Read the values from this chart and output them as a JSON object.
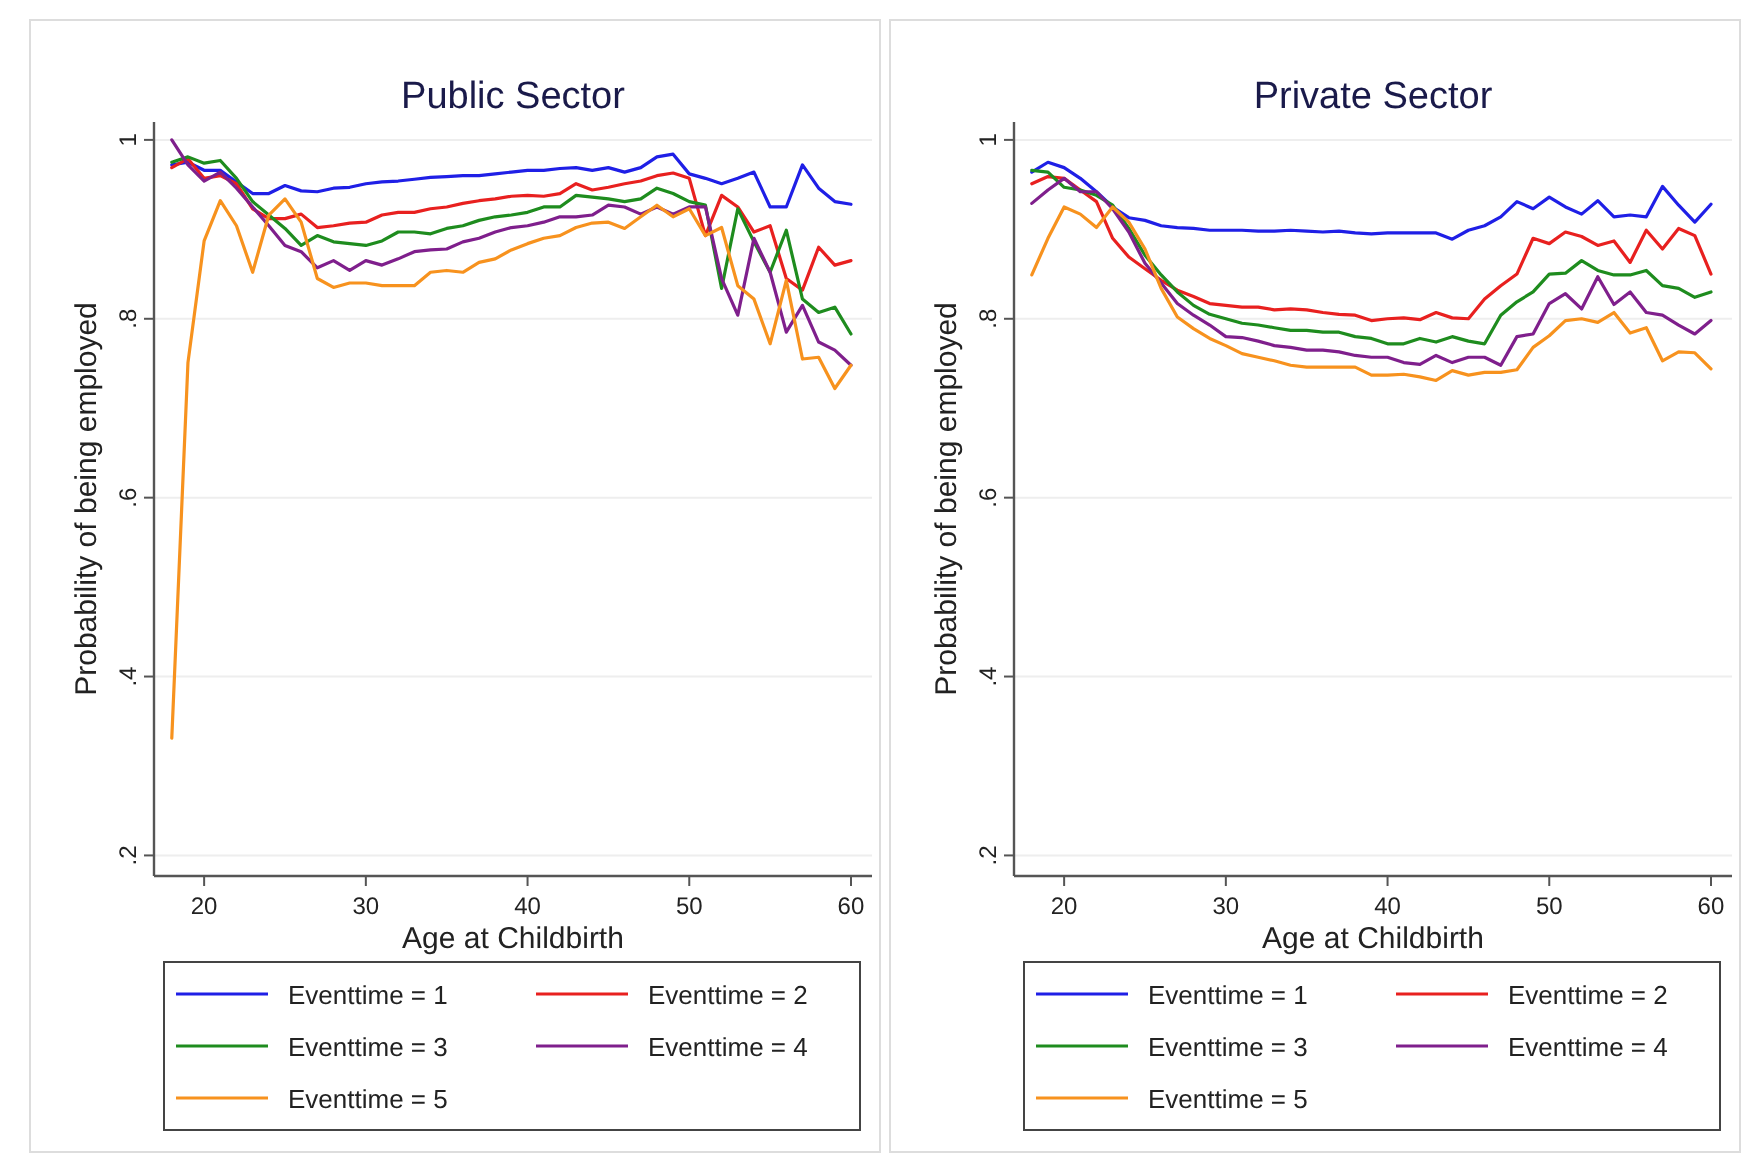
{
  "chart_data": [
    {
      "type": "line",
      "title": "Public Sector",
      "xlabel": "Age at Childbirth",
      "ylabel": "Probability of being employed",
      "x": [
        18,
        19,
        20,
        21,
        22,
        23,
        24,
        25,
        26,
        27,
        28,
        29,
        30,
        31,
        32,
        33,
        34,
        35,
        36,
        37,
        38,
        39,
        40,
        41,
        42,
        43,
        44,
        45,
        46,
        47,
        48,
        49,
        50,
        51,
        52,
        53,
        54,
        55,
        56,
        57,
        58,
        59,
        60
      ],
      "xlim": [
        16.9,
        61.3
      ],
      "xticks": [
        20,
        30,
        40,
        50,
        60
      ],
      "ylim": [
        0.177,
        1.02
      ],
      "yticks": [
        {
          "value": 0.2,
          "label": ".2"
        },
        {
          "value": 0.4,
          "label": ".4"
        },
        {
          "value": 0.6,
          "label": ".6"
        },
        {
          "value": 0.8,
          "label": ".8"
        },
        {
          "value": 1,
          "label": "1"
        }
      ],
      "grid": "y",
      "legend": "bottom",
      "line_style": "solid",
      "series": [
        {
          "name": "Eventtime = 1",
          "color": "#1f1fe6",
          "values": [
            0.972,
            0.975,
            0.966,
            0.966,
            0.953,
            0.94,
            0.94,
            0.949,
            0.943,
            0.942,
            0.946,
            0.947,
            0.951,
            0.953,
            0.954,
            0.956,
            0.958,
            0.959,
            0.96,
            0.96,
            0.962,
            0.964,
            0.966,
            0.966,
            0.968,
            0.969,
            0.966,
            0.969,
            0.964,
            0.969,
            0.981,
            0.984,
            0.962,
            0.957,
            0.951,
            0.957,
            0.964,
            0.925,
            0.925,
            0.972,
            0.946,
            0.931,
            0.928
          ]
        },
        {
          "name": "Eventtime = 2",
          "color": "#e8201f",
          "values": [
            0.969,
            0.979,
            0.957,
            0.96,
            0.951,
            0.923,
            0.912,
            0.912,
            0.917,
            0.902,
            0.904,
            0.907,
            0.908,
            0.916,
            0.919,
            0.919,
            0.923,
            0.925,
            0.929,
            0.932,
            0.934,
            0.937,
            0.938,
            0.937,
            0.94,
            0.951,
            0.944,
            0.947,
            0.951,
            0.954,
            0.96,
            0.963,
            0.957,
            0.893,
            0.938,
            0.925,
            0.897,
            0.904,
            0.845,
            0.832,
            0.88,
            0.86,
            0.865
          ]
        },
        {
          "name": "Eventtime = 3",
          "color": "#1e8c1e",
          "values": [
            0.975,
            0.981,
            0.974,
            0.977,
            0.957,
            0.931,
            0.916,
            0.901,
            0.882,
            0.893,
            0.886,
            0.884,
            0.882,
            0.887,
            0.897,
            0.897,
            0.895,
            0.901,
            0.904,
            0.91,
            0.914,
            0.916,
            0.919,
            0.925,
            0.925,
            0.938,
            0.936,
            0.934,
            0.931,
            0.934,
            0.946,
            0.94,
            0.931,
            0.927,
            0.834,
            0.923,
            0.886,
            0.852,
            0.899,
            0.822,
            0.807,
            0.813,
            0.783
          ]
        },
        {
          "name": "Eventtime = 4",
          "color": "#7f1f8c",
          "values": [
            1.0,
            0.972,
            0.954,
            0.964,
            0.946,
            0.925,
            0.904,
            0.882,
            0.875,
            0.857,
            0.865,
            0.854,
            0.865,
            0.86,
            0.867,
            0.875,
            0.877,
            0.878,
            0.886,
            0.89,
            0.897,
            0.902,
            0.904,
            0.908,
            0.914,
            0.914,
            0.916,
            0.927,
            0.925,
            0.917,
            0.925,
            0.917,
            0.925,
            0.925,
            0.845,
            0.804,
            0.89,
            0.852,
            0.785,
            0.815,
            0.774,
            0.765,
            0.748
          ]
        },
        {
          "name": "Eventtime = 5",
          "color": "#f7921e",
          "values": [
            0.331,
            0.751,
            0.887,
            0.932,
            0.904,
            0.852,
            0.916,
            0.934,
            0.908,
            0.845,
            0.835,
            0.84,
            0.84,
            0.837,
            0.837,
            0.837,
            0.852,
            0.854,
            0.852,
            0.863,
            0.867,
            0.877,
            0.884,
            0.89,
            0.893,
            0.902,
            0.907,
            0.908,
            0.901,
            0.914,
            0.927,
            0.914,
            0.923,
            0.893,
            0.902,
            0.837,
            0.822,
            0.772,
            0.843,
            0.755,
            0.757,
            0.722,
            0.748
          ]
        }
      ]
    },
    {
      "type": "line",
      "title": "Private Sector",
      "xlabel": "Age at Childbirth",
      "ylabel": "Probability of being employed",
      "x": [
        18,
        19,
        20,
        21,
        22,
        23,
        24,
        25,
        26,
        27,
        28,
        29,
        30,
        31,
        32,
        33,
        34,
        35,
        36,
        37,
        38,
        39,
        40,
        41,
        42,
        43,
        44,
        45,
        46,
        47,
        48,
        49,
        50,
        51,
        52,
        53,
        54,
        55,
        56,
        57,
        58,
        59,
        60
      ],
      "xlim": [
        16.9,
        61.3
      ],
      "xticks": [
        20,
        30,
        40,
        50,
        60
      ],
      "ylim": [
        0.177,
        1.02
      ],
      "yticks": [
        {
          "value": 0.2,
          "label": ".2"
        },
        {
          "value": 0.4,
          "label": ".4"
        },
        {
          "value": 0.6,
          "label": ".6"
        },
        {
          "value": 0.8,
          "label": ".8"
        },
        {
          "value": 1,
          "label": "1"
        }
      ],
      "grid": "y",
      "legend": "bottom",
      "line_style": "solid",
      "series": [
        {
          "name": "Eventtime = 1",
          "color": "#1f1fe6",
          "values": [
            0.964,
            0.975,
            0.969,
            0.957,
            0.942,
            0.925,
            0.913,
            0.91,
            0.904,
            0.902,
            0.901,
            0.899,
            0.899,
            0.899,
            0.898,
            0.898,
            0.899,
            0.898,
            0.897,
            0.898,
            0.896,
            0.895,
            0.896,
            0.896,
            0.896,
            0.896,
            0.889,
            0.899,
            0.904,
            0.914,
            0.931,
            0.923,
            0.936,
            0.925,
            0.917,
            0.932,
            0.914,
            0.916,
            0.914,
            0.948,
            0.927,
            0.908,
            0.928
          ]
        },
        {
          "name": "Eventtime = 2",
          "color": "#e8201f",
          "values": [
            0.951,
            0.959,
            0.957,
            0.944,
            0.931,
            0.89,
            0.869,
            0.856,
            0.843,
            0.832,
            0.825,
            0.817,
            0.815,
            0.813,
            0.813,
            0.81,
            0.811,
            0.81,
            0.807,
            0.805,
            0.804,
            0.798,
            0.8,
            0.801,
            0.799,
            0.807,
            0.801,
            0.8,
            0.822,
            0.837,
            0.85,
            0.89,
            0.884,
            0.897,
            0.892,
            0.882,
            0.887,
            0.863,
            0.899,
            0.878,
            0.901,
            0.893,
            0.85
          ]
        },
        {
          "name": "Eventtime = 3",
          "color": "#1e8c1e",
          "values": [
            0.966,
            0.964,
            0.947,
            0.944,
            0.938,
            0.927,
            0.901,
            0.871,
            0.849,
            0.83,
            0.815,
            0.805,
            0.8,
            0.795,
            0.793,
            0.79,
            0.787,
            0.787,
            0.785,
            0.785,
            0.78,
            0.778,
            0.772,
            0.772,
            0.778,
            0.774,
            0.78,
            0.775,
            0.772,
            0.804,
            0.819,
            0.83,
            0.85,
            0.851,
            0.865,
            0.854,
            0.849,
            0.849,
            0.854,
            0.837,
            0.834,
            0.824,
            0.83
          ]
        },
        {
          "name": "Eventtime = 4",
          "color": "#7f1f8c",
          "values": [
            0.929,
            0.944,
            0.957,
            0.942,
            0.942,
            0.923,
            0.897,
            0.862,
            0.84,
            0.817,
            0.804,
            0.793,
            0.78,
            0.779,
            0.775,
            0.77,
            0.768,
            0.765,
            0.765,
            0.763,
            0.759,
            0.757,
            0.757,
            0.751,
            0.749,
            0.759,
            0.751,
            0.757,
            0.757,
            0.748,
            0.78,
            0.783,
            0.817,
            0.828,
            0.811,
            0.847,
            0.816,
            0.83,
            0.807,
            0.804,
            0.793,
            0.783,
            0.798
          ]
        },
        {
          "name": "Eventtime = 5",
          "color": "#f7921e",
          "values": [
            0.849,
            0.89,
            0.925,
            0.917,
            0.902,
            0.925,
            0.908,
            0.878,
            0.834,
            0.802,
            0.789,
            0.778,
            0.77,
            0.761,
            0.757,
            0.753,
            0.748,
            0.746,
            0.746,
            0.746,
            0.746,
            0.737,
            0.737,
            0.738,
            0.735,
            0.731,
            0.742,
            0.737,
            0.74,
            0.74,
            0.743,
            0.768,
            0.781,
            0.798,
            0.8,
            0.796,
            0.807,
            0.784,
            0.79,
            0.753,
            0.763,
            0.762,
            0.744
          ]
        }
      ]
    }
  ]
}
